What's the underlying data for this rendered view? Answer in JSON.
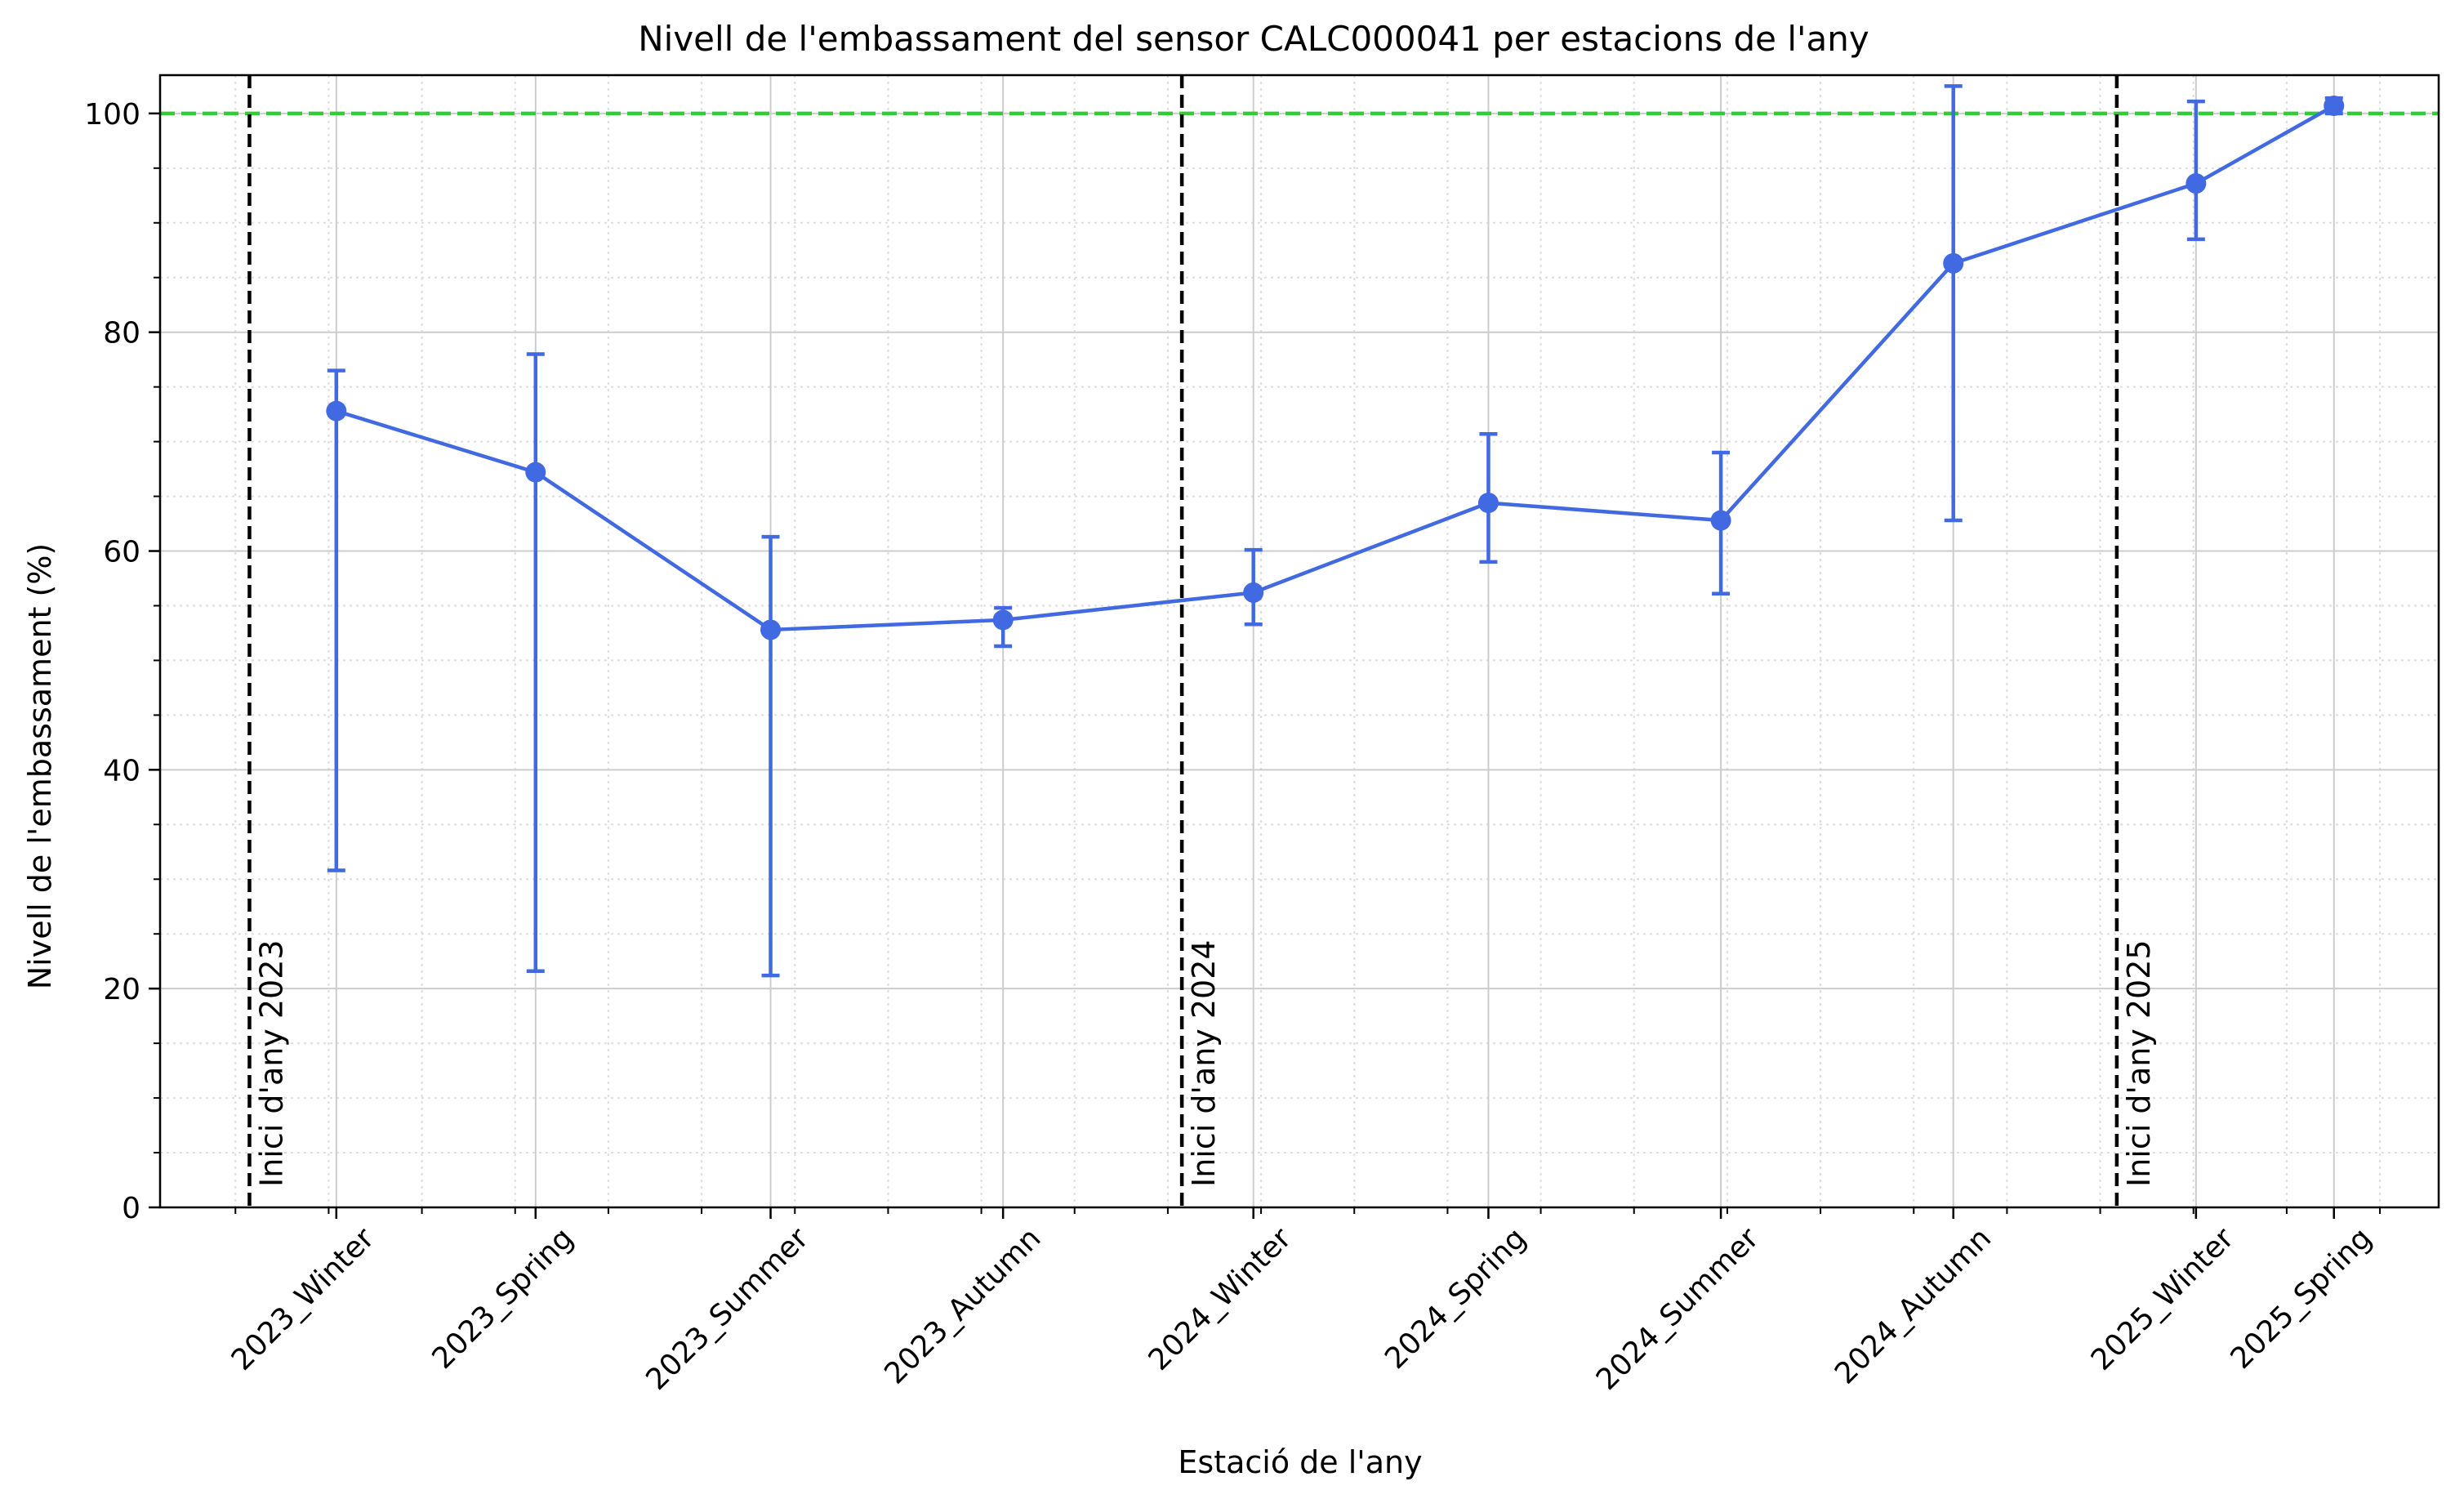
{
  "chart_data": {
    "type": "line",
    "title": "Nivell de l'embassament del sensor CALC000041 per estacions de l'any",
    "xlabel": "Estació de l'any",
    "ylabel": "Nivell de l'embassament (%)",
    "ylim": [
      0,
      103.5
    ],
    "yticks": [
      "0",
      "20",
      "40",
      "60",
      "80",
      "100"
    ],
    "grid": true,
    "minor_grid": true,
    "categories": [
      "2023_Winter",
      "2023_Spring",
      "2023_Summer",
      "2023_Autumn",
      "2024_Winter",
      "2024_Spring",
      "2024_Summer",
      "2024_Autumn",
      "2025_Winter",
      "2025_Spring"
    ],
    "x_dates": [
      "2023-02-04",
      "2023-04-23",
      "2023-07-24",
      "2023-10-23",
      "2024-01-29",
      "2024-04-30",
      "2024-07-30",
      "2024-10-29",
      "2025-02-01",
      "2025-03-27"
    ],
    "xlim": [
      "2022-11-27",
      "2025-05-07"
    ],
    "series": [
      {
        "values": [
          72.8,
          67.2,
          52.8,
          53.7,
          56.2,
          64.4,
          62.8,
          86.3,
          93.6,
          100.7
        ],
        "error_low": [
          30.8,
          21.6,
          21.2,
          51.3,
          53.3,
          59.0,
          56.1,
          62.8,
          88.5,
          100.0
        ],
        "error_high": [
          76.5,
          78.0,
          61.3,
          54.8,
          60.1,
          70.7,
          69.0,
          102.5,
          101.1,
          101.4
        ],
        "color": "#4169E1"
      }
    ],
    "reference_line": {
      "value": 100,
      "color": "#33CC33",
      "style": "dashed"
    },
    "year_markers": [
      {
        "label": "Inici d'any 2023",
        "date": "2023-01-01"
      },
      {
        "label": "Inici d'any 2024",
        "date": "2024-01-01"
      },
      {
        "label": "Inici d'any 2025",
        "date": "2025-01-01"
      }
    ],
    "year_marker_color": "#000000"
  }
}
